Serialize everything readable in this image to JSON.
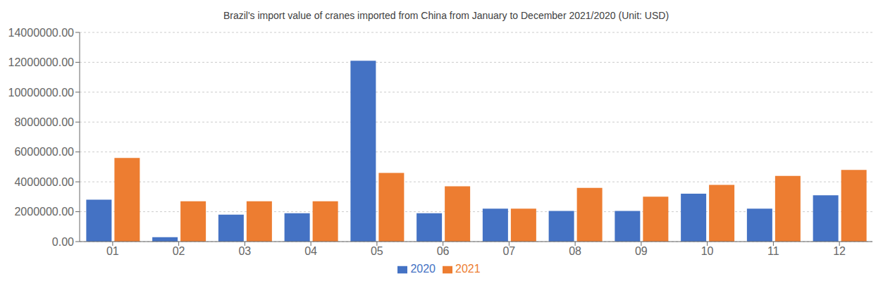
{
  "chart_data": {
    "type": "bar",
    "title": "Brazil's import value of cranes imported from China from January to December 2021/2020 (Unit: USD)",
    "categories": [
      "01",
      "02",
      "03",
      "04",
      "05",
      "06",
      "07",
      "08",
      "09",
      "10",
      "11",
      "12"
    ],
    "series": [
      {
        "name": "2020",
        "color": "#4472C4",
        "values": [
          2800000,
          300000,
          1800000,
          1900000,
          12100000,
          1900000,
          2200000,
          2050000,
          2050000,
          3200000,
          2200000,
          3100000
        ]
      },
      {
        "name": "2021",
        "color": "#ED7D31",
        "values": [
          5600000,
          2700000,
          2700000,
          2700000,
          4600000,
          3700000,
          2200000,
          3600000,
          3000000,
          3800000,
          4400000,
          4800000
        ]
      }
    ],
    "ylim": [
      0,
      14000000
    ],
    "yticks": [
      {
        "value": 0,
        "label": "0.00"
      },
      {
        "value": 2000000,
        "label": "2000000.00"
      },
      {
        "value": 4000000,
        "label": "4000000.00"
      },
      {
        "value": 6000000,
        "label": "6000000.00"
      },
      {
        "value": 8000000,
        "label": "8000000.00"
      },
      {
        "value": 10000000,
        "label": "10000000.00"
      },
      {
        "value": 12000000,
        "label": "12000000.00"
      },
      {
        "value": 14000000,
        "label": "14000000.00"
      }
    ],
    "grid": true,
    "legend": "bottom"
  }
}
